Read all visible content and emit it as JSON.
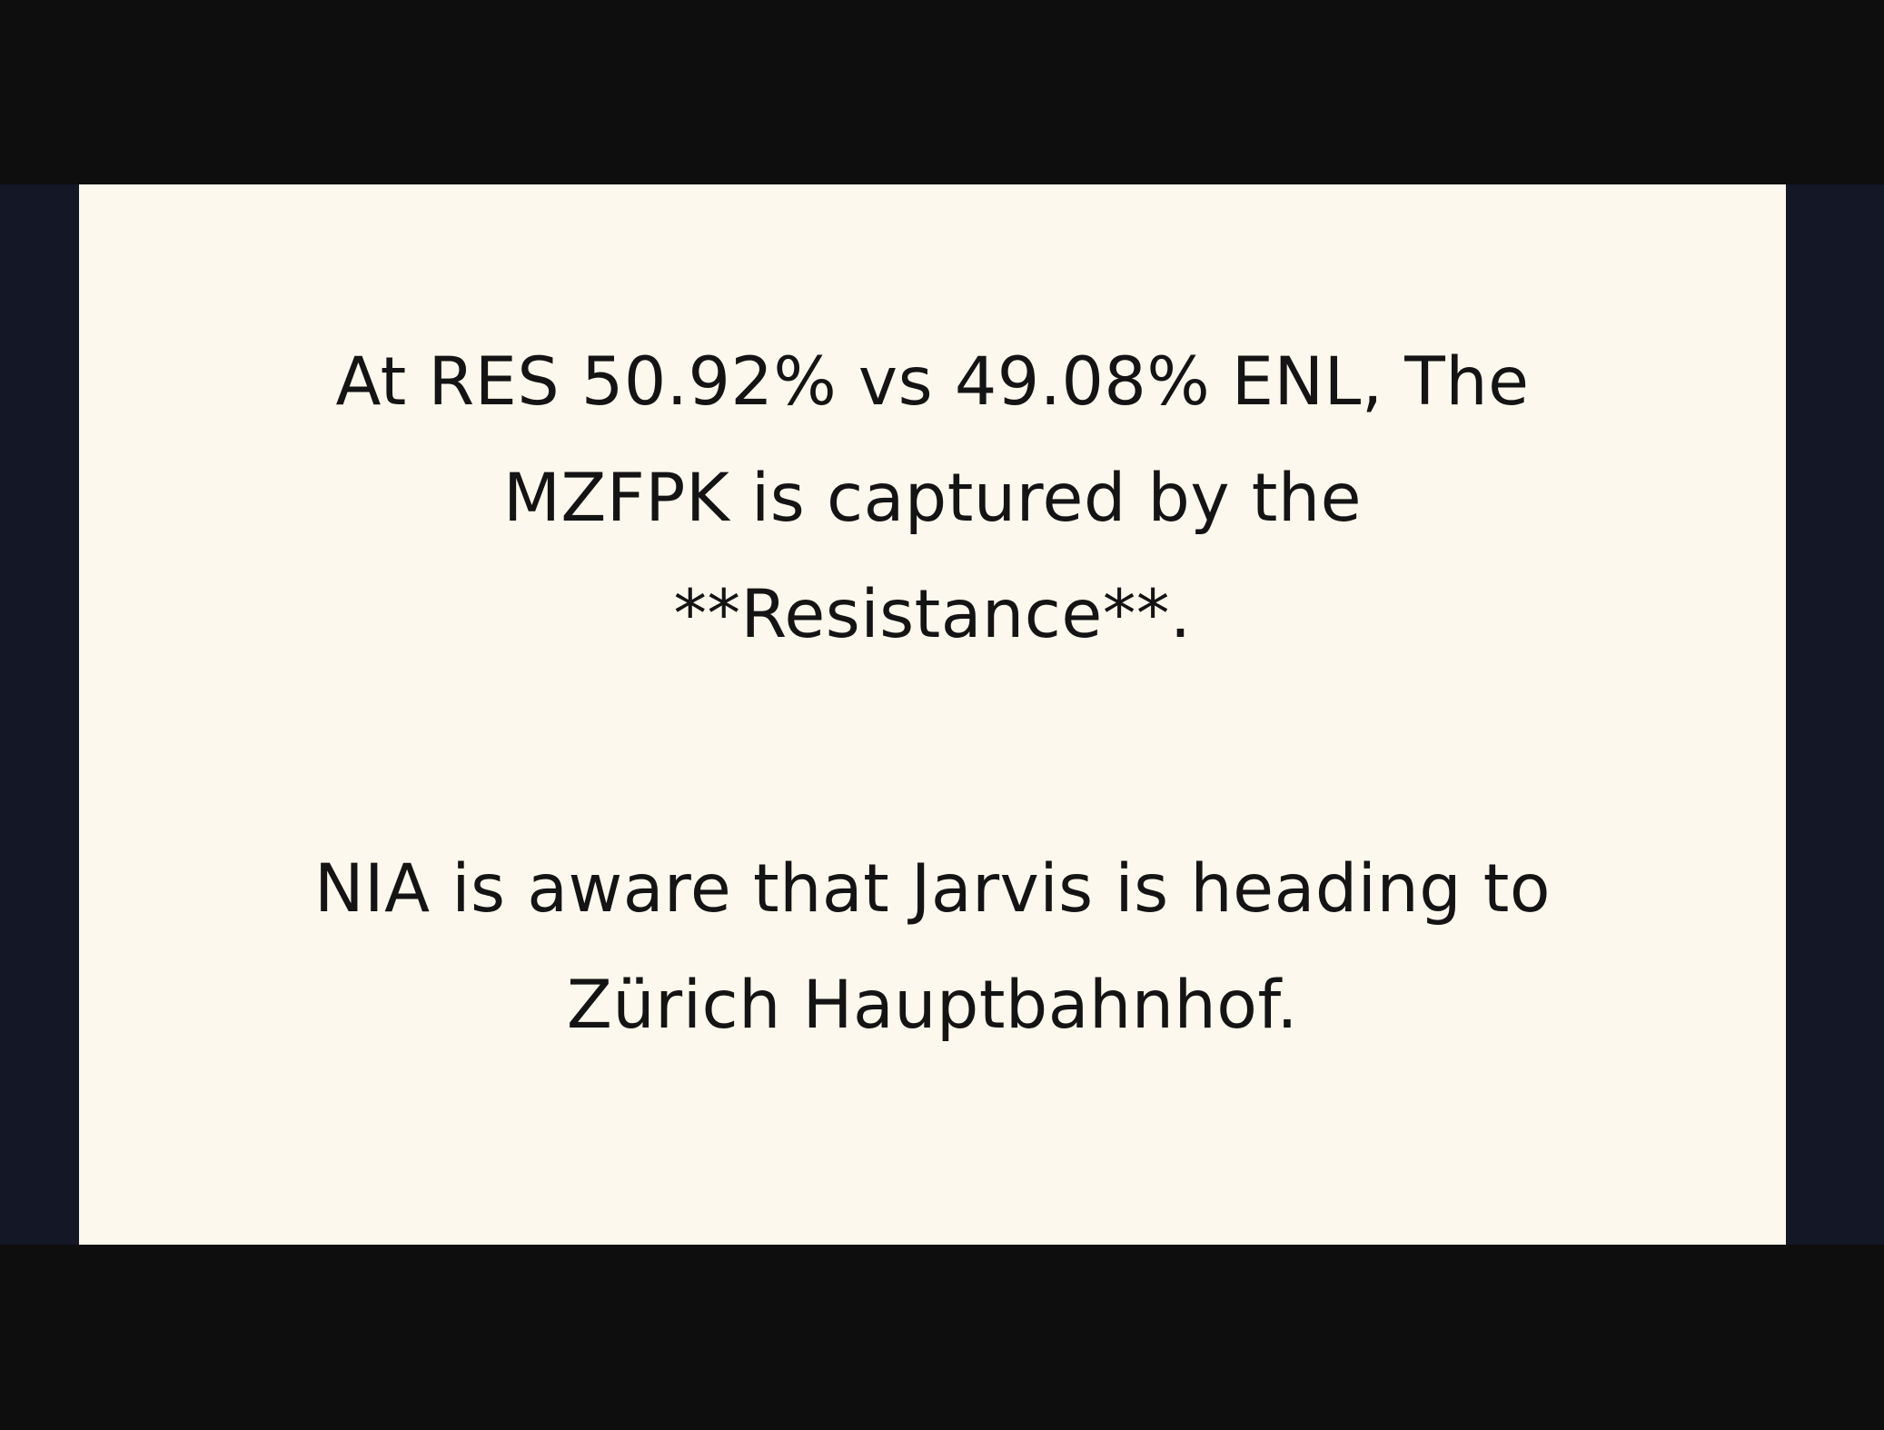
{
  "dialogue": {
    "result_lines": [
      "At RES 50.92% vs 49.08% ENL, The",
      "MZFPK is captured by the",
      "**Resistance**."
    ],
    "intel_lines": [
      "NIA is aware that Jarvis is heading to",
      "Zürich Hauptbahnhof."
    ]
  },
  "colors": {
    "letterbox": "#0e0e0e",
    "backdrop": "#131726",
    "card": "#fdf8ed",
    "text": "#141414"
  }
}
